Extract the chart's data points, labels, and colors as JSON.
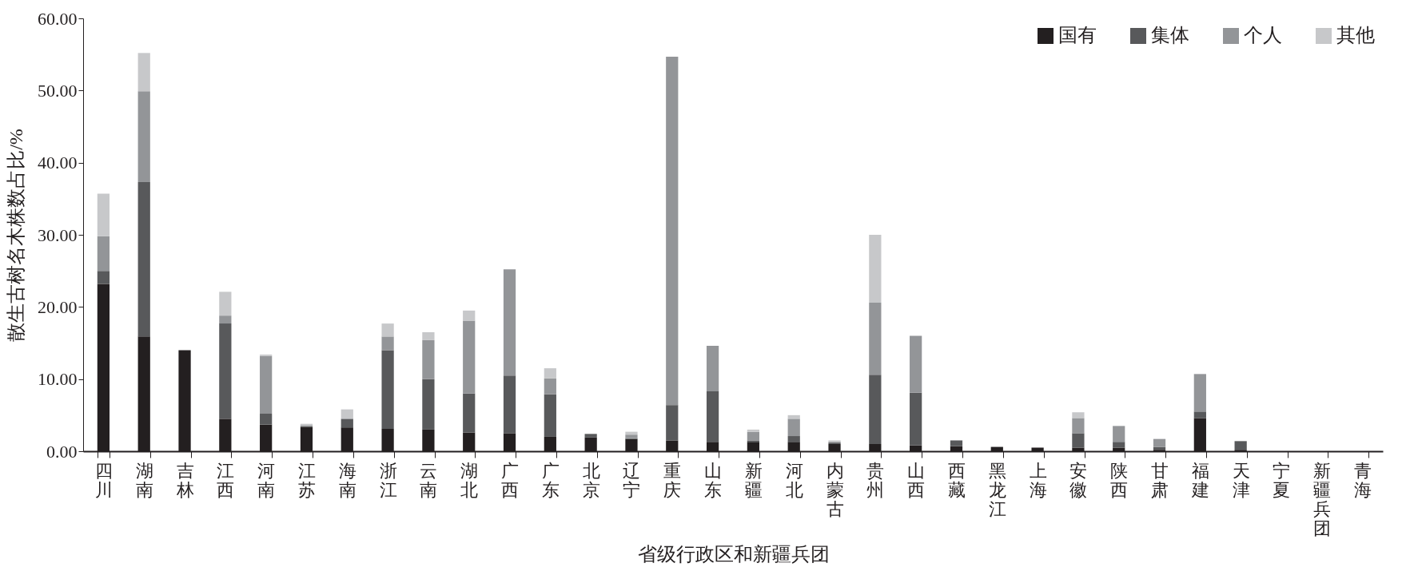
{
  "chart_data": {
    "type": "bar",
    "stacked": true,
    "xlabel": "省级行政区和新疆兵团",
    "ylabel": "散生古树名木株数占比/%",
    "categories": [
      "四川",
      "湖南",
      "吉林",
      "江西",
      "河南",
      "江苏",
      "海南",
      "浙江",
      "云南",
      "湖北",
      "广西",
      "广东",
      "北京",
      "辽宁",
      "重庆",
      "山东",
      "新疆",
      "河北",
      "内蒙古",
      "贵州",
      "山西",
      "西藏",
      "黑龙江",
      "上海",
      "安徽",
      "陕西",
      "甘肃",
      "福建",
      "天津",
      "宁夏",
      "新疆兵团",
      "青海"
    ],
    "series": [
      {
        "name": "国有",
        "color": "#231f20",
        "values": [
          23.2,
          15.9,
          14.0,
          4.5,
          3.7,
          3.4,
          3.3,
          3.1,
          3.0,
          2.6,
          2.5,
          2.0,
          1.9,
          1.7,
          1.5,
          1.3,
          1.3,
          1.3,
          1.0,
          1.0,
          0.8,
          0.7,
          0.6,
          0.5,
          0.5,
          0.5,
          0.2,
          4.6,
          0.2,
          0,
          0,
          0
        ]
      },
      {
        "name": "集体",
        "color": "#58595b",
        "values": [
          1.8,
          21.4,
          0,
          13.2,
          1.5,
          0,
          1.2,
          10.9,
          7.0,
          5.4,
          8.0,
          5.9,
          0.5,
          0.1,
          4.9,
          7.0,
          0.2,
          0.8,
          0.2,
          9.6,
          7.3,
          0.8,
          0,
          0,
          2.0,
          0.8,
          0.4,
          0.9,
          1.2,
          0,
          0,
          0
        ]
      },
      {
        "name": "个人",
        "color": "#939598",
        "values": [
          4.8,
          12.6,
          0,
          1.1,
          8.0,
          0.2,
          0,
          1.9,
          5.4,
          10.1,
          14.7,
          2.2,
          0,
          0.5,
          48.3,
          6.3,
          1.2,
          2.4,
          0.1,
          10.0,
          7.9,
          0,
          0,
          0,
          2.1,
          2.2,
          1.1,
          5.2,
          0,
          0,
          0,
          0
        ]
      },
      {
        "name": "其他",
        "color": "#c7c8ca",
        "values": [
          5.9,
          5.3,
          0,
          3.3,
          0.2,
          0.2,
          1.3,
          1.8,
          1.1,
          1.4,
          0,
          1.4,
          0,
          0.4,
          0,
          0,
          0.3,
          0.5,
          0.2,
          9.4,
          0,
          0,
          0,
          0,
          0.8,
          0,
          0,
          0,
          0,
          0,
          0,
          0
        ]
      }
    ],
    "ylim": [
      0,
      60
    ],
    "yticks": [
      {
        "value": 0,
        "label": "0.00"
      },
      {
        "value": 10,
        "label": "10.00"
      },
      {
        "value": 20,
        "label": "20.00"
      },
      {
        "value": 30,
        "label": "30.00"
      },
      {
        "value": 40,
        "label": "40.00"
      },
      {
        "value": 50,
        "label": "50.00"
      },
      {
        "value": 60,
        "label": "60.00"
      }
    ],
    "grid": false,
    "legend": "top right"
  }
}
